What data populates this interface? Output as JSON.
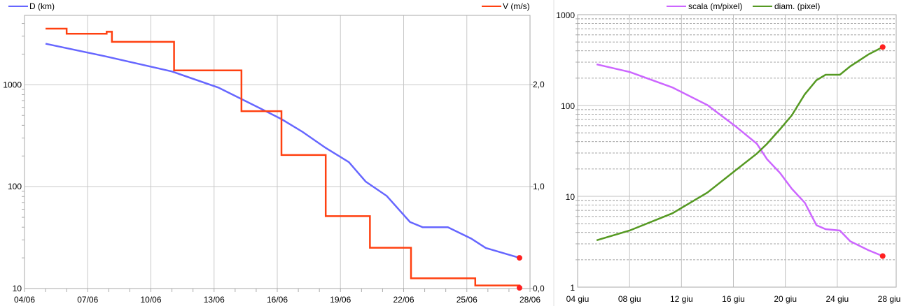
{
  "chart_data": [
    {
      "type": "line",
      "title": "",
      "x_unit": "days after 04/06",
      "xticks": [
        "04/06",
        "07/06",
        "10/06",
        "13/06",
        "16/06",
        "19/06",
        "22/06",
        "25/06",
        "28/06"
      ],
      "xlim": [
        0,
        24
      ],
      "left_axis": {
        "scale": "log",
        "ylim": [
          10,
          4800
        ],
        "ticks": [
          "10",
          "100",
          "1000"
        ]
      },
      "right_axis": {
        "scale": "linear",
        "ylim": [
          0,
          2.68
        ],
        "ticks": [
          "0,0",
          "1,0",
          "2,0"
        ]
      },
      "legend": "top",
      "series": [
        {
          "name": "D (km)",
          "axis": "left",
          "color": "#6666ff",
          "step": false,
          "points": [
            [
              1.0,
              2530
            ],
            [
              3.85,
              1900
            ],
            [
              7.0,
              1350
            ],
            [
              9.2,
              940
            ],
            [
              11.2,
              585
            ],
            [
              12.2,
              460
            ],
            [
              13.2,
              345
            ],
            [
              14.3,
              240
            ],
            [
              15.4,
              174
            ],
            [
              16.2,
              112
            ],
            [
              17.2,
              81
            ],
            [
              18.3,
              45
            ],
            [
              18.9,
              40
            ],
            [
              20.1,
              40
            ],
            [
              21.2,
              31
            ],
            [
              21.9,
              25
            ],
            [
              22.2,
              24
            ],
            [
              23.5,
              20
            ]
          ]
        },
        {
          "name": "V (m/s)",
          "axis": "right",
          "color": "#ff4010",
          "step": true,
          "points": [
            [
              1.0,
              2.55
            ],
            [
              2.0,
              2.5
            ],
            [
              3.9,
              2.52
            ],
            [
              4.15,
              2.42
            ],
            [
              7.1,
              2.14
            ],
            [
              10.3,
              1.74
            ],
            [
              12.2,
              1.31
            ],
            [
              14.3,
              0.71
            ],
            [
              16.4,
              0.4
            ],
            [
              18.35,
              0.1
            ],
            [
              21.4,
              0.03
            ],
            [
              23.5,
              0.0
            ]
          ]
        }
      ]
    },
    {
      "type": "line",
      "title": "",
      "x_unit": "days after 04 giu",
      "xticks": [
        "04 giu",
        "08 giu",
        "12 giu",
        "16 giu",
        "20 giu",
        "24 giu",
        "28 giu"
      ],
      "xlim": [
        0,
        24
      ],
      "y_axis": {
        "scale": "log",
        "ylim": [
          1,
          1000
        ],
        "ticks": [
          "1",
          "10",
          "100",
          "1000"
        ]
      },
      "legend": "top",
      "series": [
        {
          "name": "scala (m/pixel)",
          "color": "#cc66ff",
          "points": [
            [
              1.46,
              284
            ],
            [
              4.0,
              234
            ],
            [
              7.3,
              158
            ],
            [
              10.0,
              101
            ],
            [
              12.1,
              60
            ],
            [
              13.8,
              38
            ],
            [
              14.6,
              25.5
            ],
            [
              15.6,
              18
            ],
            [
              16.5,
              12.1
            ],
            [
              17.5,
              8.5
            ],
            [
              18.4,
              4.8
            ],
            [
              19.1,
              4.35
            ],
            [
              20.2,
              4.2
            ],
            [
              21.0,
              3.2
            ],
            [
              22.4,
              2.55
            ],
            [
              23.5,
              2.2
            ]
          ]
        },
        {
          "name": "diam. (pixel)",
          "color": "#559922",
          "points": [
            [
              1.46,
              3.28
            ],
            [
              4.0,
              4.2
            ],
            [
              7.3,
              6.5
            ],
            [
              10.0,
              11
            ],
            [
              12.1,
              19
            ],
            [
              13.8,
              29.5
            ],
            [
              14.6,
              38
            ],
            [
              15.6,
              55
            ],
            [
              16.5,
              78
            ],
            [
              17.5,
              133
            ],
            [
              18.4,
              190
            ],
            [
              19.1,
              218
            ],
            [
              20.2,
              218
            ],
            [
              21.0,
              270
            ],
            [
              22.4,
              365
            ],
            [
              23.5,
              440
            ]
          ]
        }
      ]
    }
  ]
}
